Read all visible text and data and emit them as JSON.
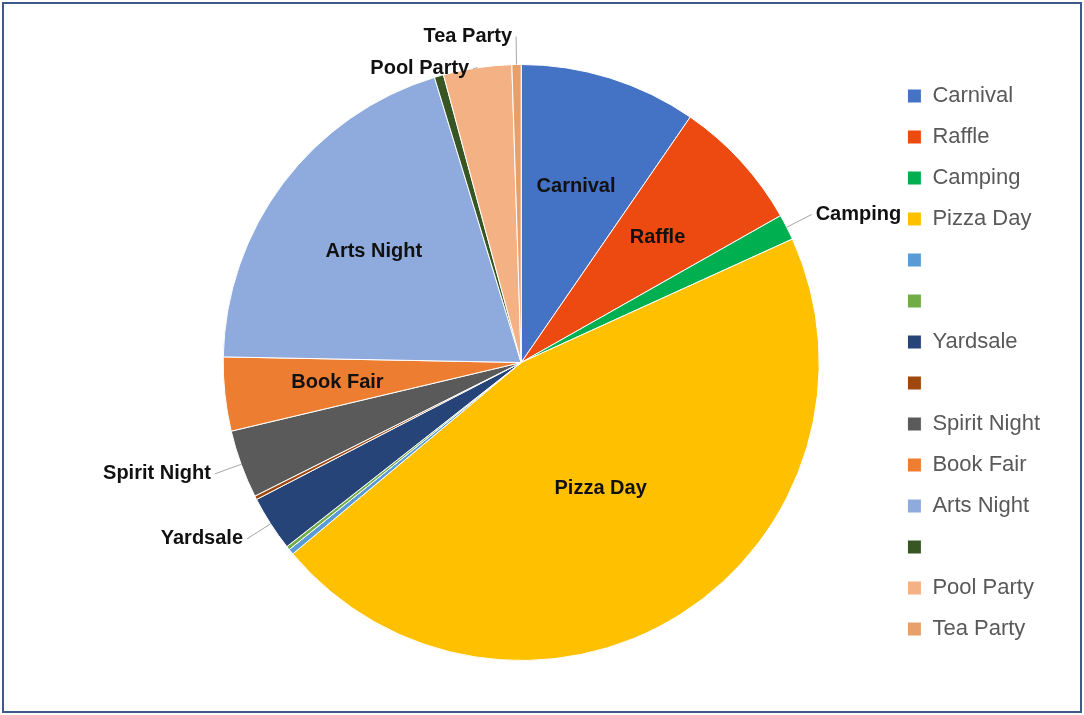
{
  "chart_data": {
    "type": "pie",
    "categories": [
      "Carnival",
      "Raffle",
      "Camping",
      "Pizza Day",
      null,
      null,
      "Yardsale",
      null,
      "Spirit Night",
      "Book Fair",
      "Arts Night",
      null,
      "Pool Party",
      "Tea Party"
    ],
    "values": [
      9.6,
      7.2,
      1.4,
      45.7,
      0.3,
      0.2,
      3.0,
      0.2,
      3.7,
      4.0,
      20.0,
      0.5,
      3.7,
      0.5
    ],
    "colors": [
      "#4472c4",
      "#ed4a12",
      "#00b050",
      "#ffc000",
      "#5b9bd5",
      "#70ad47",
      "#264478",
      "#9e480e",
      "#5a5a5a",
      "#ed7d31",
      "#8faadc",
      "#375623",
      "#f4b183",
      "#e8a06a"
    ],
    "legend": "right"
  }
}
